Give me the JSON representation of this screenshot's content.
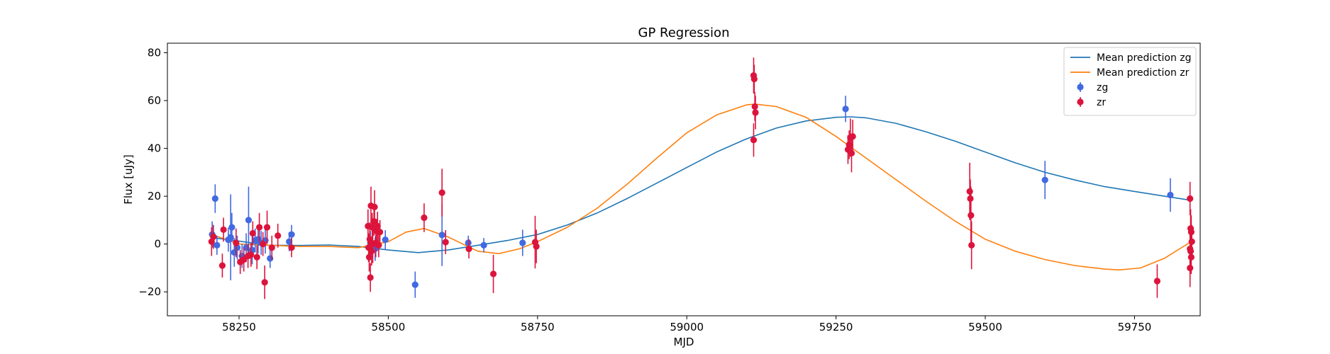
{
  "chart_data": {
    "type": "scatter",
    "title": "GP Regression",
    "xlabel": "MJD",
    "ylabel": "Flux [uJy]",
    "xlim": [
      58130,
      59860
    ],
    "ylim": [
      -30,
      84
    ],
    "xticks": [
      58250,
      58500,
      58750,
      59000,
      59250,
      59500,
      59750
    ],
    "yticks": [
      -20,
      0,
      20,
      40,
      60,
      80
    ],
    "grid": false,
    "legend_placement": "top-right",
    "series": [
      {
        "name": "Mean prediction zg",
        "kind": "line",
        "color": "#1f77b4",
        "x": [
          58210,
          58250,
          58300,
          58350,
          58400,
          58450,
          58500,
          58550,
          58600,
          58650,
          58700,
          58750,
          58800,
          58850,
          58900,
          58950,
          59000,
          59050,
          59100,
          59150,
          59200,
          59250,
          59275,
          59300,
          59350,
          59400,
          59450,
          59500,
          59550,
          59600,
          59650,
          59700,
          59750,
          59800,
          59845
        ],
        "y": [
          2.5,
          1.2,
          -0.5,
          -0.6,
          -0.4,
          -1.0,
          -2.5,
          -3.6,
          -2.5,
          -0.5,
          1.5,
          4.0,
          8.0,
          13.0,
          19.0,
          25.5,
          32.0,
          38.5,
          44.0,
          48.5,
          51.5,
          53.0,
          53.2,
          52.8,
          50.5,
          47.0,
          43.0,
          38.5,
          34.0,
          30.0,
          26.8,
          24.0,
          22.0,
          20.0,
          18.3
        ]
      },
      {
        "name": "Mean prediction zr",
        "kind": "line",
        "color": "#ff7f0e",
        "x": [
          58210,
          58250,
          58300,
          58350,
          58400,
          58450,
          58500,
          58530,
          58560,
          58600,
          58650,
          58685,
          58720,
          58750,
          58800,
          58850,
          58900,
          58950,
          59000,
          59050,
          59100,
          59115,
          59150,
          59200,
          59250,
          59300,
          59350,
          59400,
          59450,
          59500,
          59550,
          59600,
          59650,
          59700,
          59725,
          59760,
          59800,
          59845
        ],
        "y": [
          3.5,
          0.0,
          -0.5,
          -1.0,
          -1.0,
          -1.5,
          1.0,
          5.0,
          6.5,
          3.0,
          -3.0,
          -4.0,
          -2.0,
          1.0,
          7.0,
          15.0,
          25.0,
          36.0,
          46.5,
          54.0,
          58.2,
          58.5,
          57.5,
          53.0,
          45.0,
          36.0,
          27.0,
          18.0,
          9.5,
          2.0,
          -3.0,
          -6.5,
          -9.0,
          -10.5,
          -10.8,
          -10.0,
          -6.0,
          1.0
        ]
      },
      {
        "name": "zg",
        "kind": "errorbar",
        "color": "#4169e1",
        "points": [
          {
            "x": 58205,
            "y": 4.0,
            "err": 5.5
          },
          {
            "x": 58210,
            "y": 19.0,
            "err": 6.0
          },
          {
            "x": 58213,
            "y": -0.5,
            "err": 4.0
          },
          {
            "x": 58232,
            "y": 1.8,
            "err": 5.0
          },
          {
            "x": 58236,
            "y": 2.8,
            "err": 18.0
          },
          {
            "x": 58238,
            "y": 7.0,
            "err": 6.0
          },
          {
            "x": 58242,
            "y": -3.5,
            "err": 6.0
          },
          {
            "x": 58247,
            "y": -1.5,
            "err": 5.0
          },
          {
            "x": 58255,
            "y": -5.0,
            "err": 5.0
          },
          {
            "x": 58262,
            "y": -1.5,
            "err": 6.0
          },
          {
            "x": 58266,
            "y": 10.0,
            "err": 14.0
          },
          {
            "x": 58272,
            "y": -2.5,
            "err": 6.0
          },
          {
            "x": 58277,
            "y": 1.5,
            "err": 5.0
          },
          {
            "x": 58282,
            "y": 2.0,
            "err": 6.0
          },
          {
            "x": 58287,
            "y": 0.5,
            "err": 5.0
          },
          {
            "x": 58294,
            "y": 1.5,
            "err": 5.5
          },
          {
            "x": 58302,
            "y": -6.0,
            "err": 4.0
          },
          {
            "x": 58334,
            "y": 1.0,
            "err": 4.0
          },
          {
            "x": 58338,
            "y": 4.0,
            "err": 4.0
          },
          {
            "x": 58470,
            "y": 0.5,
            "err": 5.0
          },
          {
            "x": 58478,
            "y": -2.0,
            "err": 5.0
          },
          {
            "x": 58495,
            "y": 1.8,
            "err": 4.0
          },
          {
            "x": 58545,
            "y": -17.0,
            "err": 5.5
          },
          {
            "x": 58590,
            "y": 3.8,
            "err": 13.0
          },
          {
            "x": 58634,
            "y": 0.5,
            "err": 3.0
          },
          {
            "x": 58660,
            "y": -0.5,
            "err": 3.0
          },
          {
            "x": 58725,
            "y": 0.5,
            "err": 5.5
          },
          {
            "x": 59266,
            "y": 56.5,
            "err": 5.5
          },
          {
            "x": 59600,
            "y": 26.8,
            "err": 8.0
          },
          {
            "x": 59810,
            "y": 20.5,
            "err": 7.0
          }
        ]
      },
      {
        "name": "zr",
        "kind": "errorbar",
        "color": "#dc143c",
        "points": [
          {
            "x": 58204,
            "y": 1.0,
            "err": 6.0
          },
          {
            "x": 58207,
            "y": 3.0,
            "err": 5.0
          },
          {
            "x": 58222,
            "y": -9.0,
            "err": 5.0
          },
          {
            "x": 58224,
            "y": 6.0,
            "err": 5.0
          },
          {
            "x": 58245,
            "y": 0.5,
            "err": 6.0
          },
          {
            "x": 58252,
            "y": -7.5,
            "err": 5.0
          },
          {
            "x": 58258,
            "y": -6.5,
            "err": 5.0
          },
          {
            "x": 58265,
            "y": -5.0,
            "err": 5.0
          },
          {
            "x": 58270,
            "y": -4.5,
            "err": 5.0
          },
          {
            "x": 58273,
            "y": 4.5,
            "err": 5.0
          },
          {
            "x": 58280,
            "y": -5.5,
            "err": 5.0
          },
          {
            "x": 58284,
            "y": 7.0,
            "err": 6.0
          },
          {
            "x": 58290,
            "y": 0.0,
            "err": 5.0
          },
          {
            "x": 58293,
            "y": -16.0,
            "err": 7.0
          },
          {
            "x": 58297,
            "y": 7.0,
            "err": 7.0
          },
          {
            "x": 58305,
            "y": -1.5,
            "err": 5.0
          },
          {
            "x": 58315,
            "y": 3.5,
            "err": 5.0
          },
          {
            "x": 58338,
            "y": -1.5,
            "err": 4.0
          },
          {
            "x": 58466,
            "y": 7.5,
            "err": 7.0
          },
          {
            "x": 58467,
            "y": -1.5,
            "err": 6.0
          },
          {
            "x": 58468,
            "y": -5.5,
            "err": 6.0
          },
          {
            "x": 58469,
            "y": 2.0,
            "err": 7.0
          },
          {
            "x": 58470,
            "y": -14.0,
            "err": 6.0
          },
          {
            "x": 58471,
            "y": 16.0,
            "err": 8.0
          },
          {
            "x": 58472,
            "y": -3.0,
            "err": 6.0
          },
          {
            "x": 58473,
            "y": 7.0,
            "err": 6.0
          },
          {
            "x": 58474,
            "y": 0.0,
            "err": 8.0
          },
          {
            "x": 58476,
            "y": 9.5,
            "err": 6.0
          },
          {
            "x": 58477,
            "y": 15.5,
            "err": 7.0
          },
          {
            "x": 58479,
            "y": 0.5,
            "err": 6.0
          },
          {
            "x": 58480,
            "y": 5.5,
            "err": 5.0
          },
          {
            "x": 58482,
            "y": 7.5,
            "err": 6.0
          },
          {
            "x": 58484,
            "y": -0.5,
            "err": 5.0
          },
          {
            "x": 58486,
            "y": 5.0,
            "err": 5.0
          },
          {
            "x": 58560,
            "y": 11.0,
            "err": 6.0
          },
          {
            "x": 58590,
            "y": 21.5,
            "err": 10.0
          },
          {
            "x": 58596,
            "y": 0.8,
            "err": 5.0
          },
          {
            "x": 58635,
            "y": -2.0,
            "err": 4.0
          },
          {
            "x": 58676,
            "y": -12.5,
            "err": 8.0
          },
          {
            "x": 58746,
            "y": 0.8,
            "err": 11.0
          },
          {
            "x": 58748,
            "y": -1.0,
            "err": 7.0
          },
          {
            "x": 59112,
            "y": 70.5,
            "err": 7.5
          },
          {
            "x": 59113,
            "y": 69.0,
            "err": 6.0
          },
          {
            "x": 59114,
            "y": 57.5,
            "err": 6.0
          },
          {
            "x": 59115,
            "y": 55.0,
            "err": 7.0
          },
          {
            "x": 59112,
            "y": 43.5,
            "err": 7.0
          },
          {
            "x": 59270,
            "y": 39.5,
            "err": 6.0
          },
          {
            "x": 59272,
            "y": 41.5,
            "err": 6.0
          },
          {
            "x": 59274,
            "y": 44.5,
            "err": 8.0
          },
          {
            "x": 59276,
            "y": 38.0,
            "err": 8.0
          },
          {
            "x": 59278,
            "y": 45.0,
            "err": 7.0
          },
          {
            "x": 59474,
            "y": 22.0,
            "err": 12.0
          },
          {
            "x": 59475,
            "y": 19.0,
            "err": 8.0
          },
          {
            "x": 59476,
            "y": 12.0,
            "err": 12.0
          },
          {
            "x": 59477,
            "y": -0.5,
            "err": 10.0
          },
          {
            "x": 59788,
            "y": -15.5,
            "err": 7.0
          },
          {
            "x": 59843,
            "y": 19.0,
            "err": 7.0
          },
          {
            "x": 59844,
            "y": 6.5,
            "err": 8.0
          },
          {
            "x": 59845,
            "y": 5.0,
            "err": 7.0
          },
          {
            "x": 59846,
            "y": 1.0,
            "err": 7.0
          },
          {
            "x": 59843,
            "y": -2.0,
            "err": 6.0
          },
          {
            "x": 59844,
            "y": -3.0,
            "err": 6.0
          },
          {
            "x": 59845,
            "y": -5.5,
            "err": 7.0
          },
          {
            "x": 59843,
            "y": -10.0,
            "err": 8.0
          }
        ]
      }
    ],
    "legend": [
      {
        "label": "Mean prediction zg",
        "kind": "line",
        "color": "#1f77b4"
      },
      {
        "label": "Mean prediction zr",
        "kind": "line",
        "color": "#ff7f0e"
      },
      {
        "label": "zg",
        "kind": "errorbar",
        "color": "#4169e1"
      },
      {
        "label": "zr",
        "kind": "errorbar",
        "color": "#dc143c"
      }
    ]
  }
}
